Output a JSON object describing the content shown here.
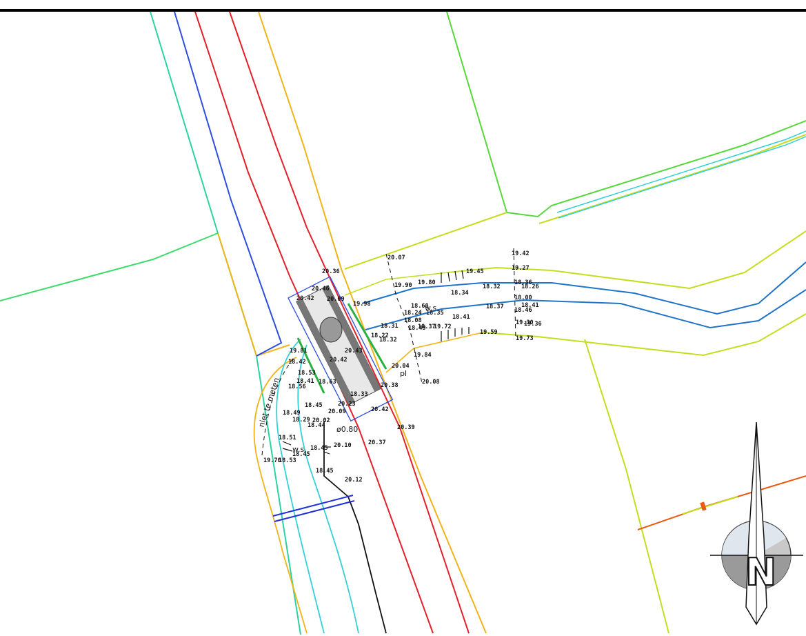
{
  "labels": {
    "spot_elevations": [
      "19.42",
      "20.07",
      "19.27",
      "20.36",
      "20.46",
      "20.42",
      "20.09",
      "19.90",
      "19.80",
      "19.45",
      "18.34",
      "18.32",
      "18.36",
      "18.26",
      "19.98",
      "18.60",
      "18.37",
      "18.00",
      "18.41",
      "18.46",
      "18.24",
      "18.35",
      "18.08",
      "18.31",
      "18.41",
      "18.49",
      "18.37",
      "18.22",
      "18.32",
      "19.30",
      "19.36",
      "19.59",
      "19.73",
      "19.72",
      "19.84",
      "20.43",
      "20.42",
      "19.81",
      "18.42",
      "18.53",
      "18.41",
      "18.56",
      "18.63",
      "18.45",
      "20.23",
      "20.09",
      "18.49",
      "18.29",
      "20.02",
      "18.44",
      "18.51",
      "18.45",
      "20.10",
      "18.45",
      "18.53",
      "19.70",
      "18.45",
      "20.12",
      "20.04",
      "20.38",
      "20.08",
      "20.42",
      "20.39",
      "20.37",
      "18.33"
    ],
    "water_surface_1": "w.s.",
    "water_surface_2": "w.s.",
    "plate_mark": "pl",
    "pipe_dim": "ø0.80",
    "note_text": "niet te meten"
  },
  "north_arrow": {
    "letter": "N"
  },
  "colors": {
    "road_centre": "#e3202a",
    "road_edge": "#f0b419",
    "blue_line": "#2d4de0",
    "water_line": "#1f74c9",
    "parcel_green": "#55d83a",
    "parcel_yellow": "#c6dc1e",
    "ditch_cyan": "#34d0d8",
    "pipe_orange": "#e85a10"
  }
}
